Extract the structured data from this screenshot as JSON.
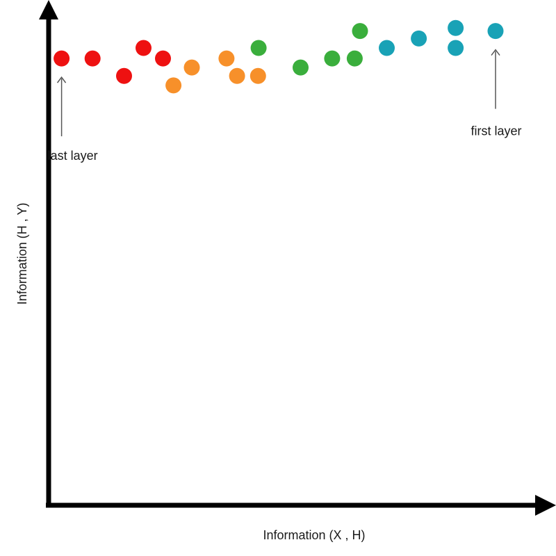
{
  "chart_data": {
    "type": "scatter",
    "title": "",
    "xlabel": "Information (X , H)",
    "ylabel": "Information (H , Y)",
    "xlim": [
      0,
      1
    ],
    "ylim": [
      0,
      1
    ],
    "grid": false,
    "ticks": false,
    "colors": {
      "red": "#ee1111",
      "orange": "#f7902a",
      "green": "#3aae3c",
      "teal": "#19a2b6",
      "axis": "#000000",
      "arrow": "#555555"
    },
    "points": [
      {
        "x": 0.051,
        "y": 0.883,
        "color": "red"
      },
      {
        "x": 0.11,
        "y": 0.883,
        "color": "red"
      },
      {
        "x": 0.17,
        "y": 0.848,
        "color": "red"
      },
      {
        "x": 0.207,
        "y": 0.904,
        "color": "red"
      },
      {
        "x": 0.244,
        "y": 0.883,
        "color": "red"
      },
      {
        "x": 0.264,
        "y": 0.829,
        "color": "orange"
      },
      {
        "x": 0.299,
        "y": 0.865,
        "color": "orange"
      },
      {
        "x": 0.365,
        "y": 0.883,
        "color": "orange"
      },
      {
        "x": 0.385,
        "y": 0.848,
        "color": "orange"
      },
      {
        "x": 0.425,
        "y": 0.848,
        "color": "orange"
      },
      {
        "x": 0.426,
        "y": 0.904,
        "color": "green"
      },
      {
        "x": 0.506,
        "y": 0.865,
        "color": "green"
      },
      {
        "x": 0.566,
        "y": 0.883,
        "color": "green"
      },
      {
        "x": 0.609,
        "y": 0.883,
        "color": "green"
      },
      {
        "x": 0.619,
        "y": 0.938,
        "color": "green"
      },
      {
        "x": 0.67,
        "y": 0.904,
        "color": "teal"
      },
      {
        "x": 0.731,
        "y": 0.923,
        "color": "teal"
      },
      {
        "x": 0.801,
        "y": 0.904,
        "color": "teal"
      },
      {
        "x": 0.801,
        "y": 0.944,
        "color": "teal"
      },
      {
        "x": 0.877,
        "y": 0.938,
        "color": "teal"
      }
    ],
    "annotations": [
      {
        "text": "last layer",
        "point_index": 0
      },
      {
        "text": "first layer",
        "point_index": 19
      }
    ]
  }
}
